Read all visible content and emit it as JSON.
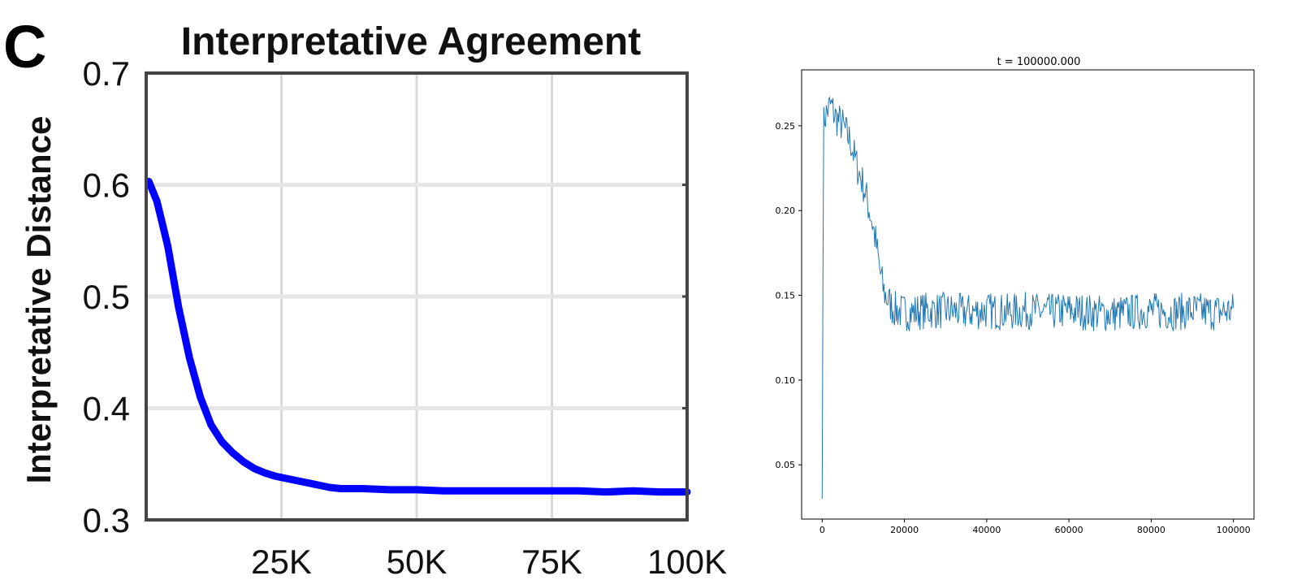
{
  "chart_data": [
    {
      "type": "line",
      "panel_label": "C",
      "title": "Interpretative Agreement",
      "xlabel": "",
      "ylabel": "Interpretative Distance",
      "xlim": [
        0,
        100000
      ],
      "ylim": [
        0.3,
        0.7
      ],
      "grid": true,
      "legend": "none",
      "x_ticks": [
        {
          "value": 25000,
          "label": "25K"
        },
        {
          "value": 50000,
          "label": "50K"
        },
        {
          "value": 75000,
          "label": "75K"
        },
        {
          "value": 100000,
          "label": "100K"
        }
      ],
      "y_ticks": [
        {
          "value": 0.3,
          "label": "0.3"
        },
        {
          "value": 0.4,
          "label": "0.4"
        },
        {
          "value": 0.5,
          "label": "0.5"
        },
        {
          "value": 0.6,
          "label": "0.6"
        },
        {
          "value": 0.7,
          "label": "0.7"
        }
      ],
      "color": "#0000ff",
      "series": [
        {
          "x": [
            500,
            2000,
            4000,
            6000,
            8000,
            10000,
            12000,
            14000,
            16000,
            18000,
            20000,
            22000,
            24000,
            26000,
            28000,
            30000,
            32000,
            34000,
            36000,
            40000,
            45000,
            50000,
            55000,
            60000,
            65000,
            70000,
            75000,
            80000,
            85000,
            90000,
            95000,
            100000
          ],
          "values": [
            0.603,
            0.585,
            0.545,
            0.49,
            0.445,
            0.41,
            0.385,
            0.37,
            0.36,
            0.352,
            0.346,
            0.342,
            0.339,
            0.337,
            0.335,
            0.333,
            0.331,
            0.329,
            0.328,
            0.328,
            0.327,
            0.327,
            0.326,
            0.326,
            0.326,
            0.326,
            0.326,
            0.326,
            0.325,
            0.326,
            0.325,
            0.325
          ]
        }
      ]
    },
    {
      "type": "line",
      "title": "t = 100000.000",
      "xlabel": "",
      "ylabel": "",
      "xlim": [
        -5000,
        105000
      ],
      "ylim": [
        0.018,
        0.283
      ],
      "grid": false,
      "legend": "none",
      "x_ticks": [
        {
          "value": 0,
          "label": "0"
        },
        {
          "value": 20000,
          "label": "20000"
        },
        {
          "value": 40000,
          "label": "40000"
        },
        {
          "value": 60000,
          "label": "60000"
        },
        {
          "value": 80000,
          "label": "80000"
        },
        {
          "value": 100000,
          "label": "100000"
        }
      ],
      "y_ticks": [
        {
          "value": 0.05,
          "label": "0.05"
        },
        {
          "value": 0.1,
          "label": "0.10"
        },
        {
          "value": 0.15,
          "label": "0.15"
        },
        {
          "value": 0.2,
          "label": "0.20"
        },
        {
          "value": 0.25,
          "label": "0.25"
        }
      ],
      "color": "#1f77b4",
      "series": [
        {
          "x": [
            0,
            300,
            600,
            1000,
            1500,
            2000,
            2500,
            3000,
            4000,
            5000,
            6000,
            7000,
            8000,
            9000,
            10000,
            11000,
            12000,
            13000,
            14000,
            15000,
            16000,
            17000,
            18000,
            20000,
            22000,
            25000,
            30000,
            35000,
            40000,
            45000,
            50000,
            55000,
            60000,
            65000,
            70000,
            75000,
            80000,
            85000,
            90000,
            95000,
            100000
          ],
          "values": [
            0.03,
            0.25,
            0.255,
            0.257,
            0.26,
            0.262,
            0.26,
            0.256,
            0.253,
            0.25,
            0.245,
            0.24,
            0.23,
            0.222,
            0.215,
            0.205,
            0.195,
            0.182,
            0.165,
            0.152,
            0.147,
            0.143,
            0.141,
            0.14,
            0.14,
            0.141,
            0.141,
            0.14,
            0.141,
            0.14,
            0.141,
            0.14,
            0.141,
            0.14,
            0.139,
            0.14,
            0.141,
            0.14,
            0.141,
            0.14,
            0.141
          ]
        }
      ]
    }
  ]
}
